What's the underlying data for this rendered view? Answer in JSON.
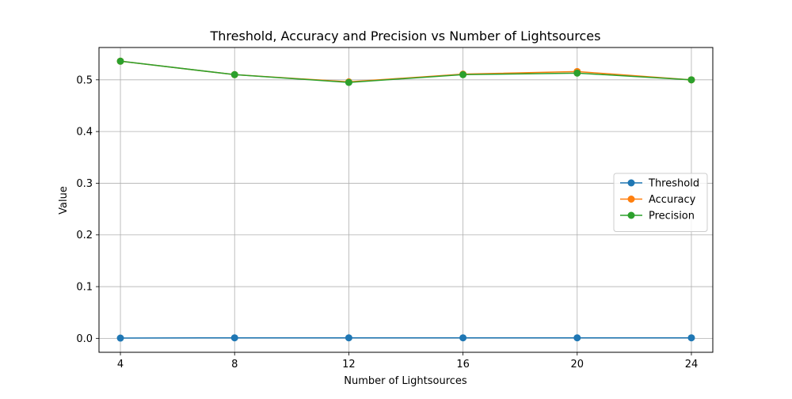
{
  "chart_data": {
    "type": "line",
    "title": "Threshold, Accuracy and Precision vs Number of Lightsources",
    "xlabel": "Number of Lightsources",
    "ylabel": "Value",
    "x": [
      4,
      8,
      12,
      16,
      20,
      24
    ],
    "x_ticks": [
      "4",
      "8",
      "12",
      "16",
      "20",
      "24"
    ],
    "y_ticks": [
      "0.0",
      "0.1",
      "0.2",
      "0.3",
      "0.4",
      "0.5"
    ],
    "y_tick_values": [
      0.0,
      0.1,
      0.2,
      0.3,
      0.4,
      0.5
    ],
    "xlim": [
      3.25,
      24.75
    ],
    "ylim": [
      -0.027,
      0.5625
    ],
    "grid": true,
    "legend_position": "center-right",
    "series": [
      {
        "name": "Threshold",
        "color": "#1f77b4",
        "values": [
          0.0005,
          0.001,
          0.001,
          0.001,
          0.001,
          0.001
        ]
      },
      {
        "name": "Accuracy",
        "color": "#ff7f0e",
        "values": [
          0.536,
          0.51,
          0.496,
          0.511,
          0.516,
          0.5
        ]
      },
      {
        "name": "Precision",
        "color": "#2ca02c",
        "values": [
          0.536,
          0.51,
          0.495,
          0.51,
          0.513,
          0.5
        ]
      }
    ]
  }
}
